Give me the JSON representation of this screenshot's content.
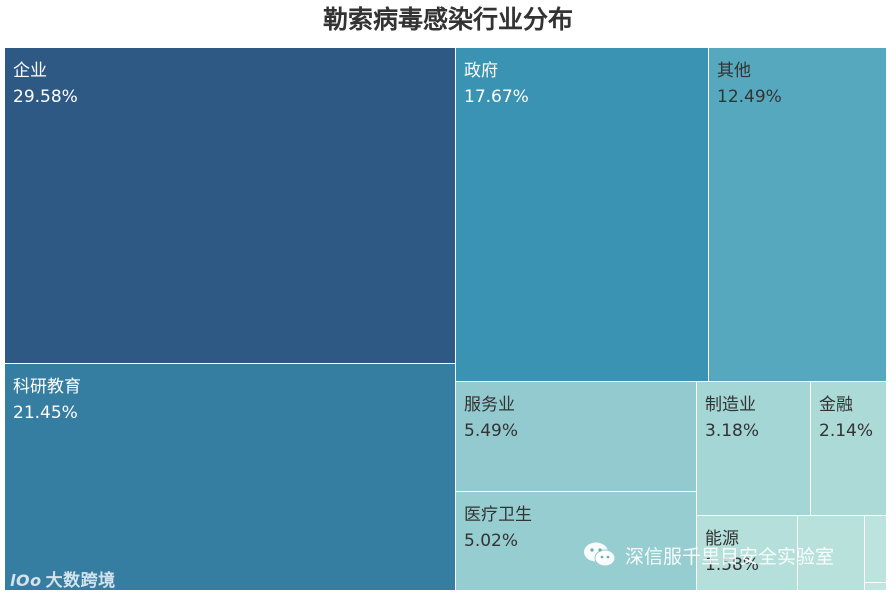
{
  "chart_data": {
    "type": "treemap",
    "title": "勒索病毒感染行业分布",
    "items": [
      {
        "name": "企业",
        "label": "29.58%",
        "value": 29.58,
        "color": "#2d5984",
        "text_color": "#ffffff"
      },
      {
        "name": "科研教育",
        "label": "21.45%",
        "value": 21.45,
        "color": "#367da2",
        "text_color": "#ffffff"
      },
      {
        "name": "政府",
        "label": "17.67%",
        "value": 17.67,
        "color": "#3a93b2",
        "text_color": "#ffffff"
      },
      {
        "name": "其他",
        "label": "12.49%",
        "value": 12.49,
        "color": "#56a8be",
        "text_color": "#333333"
      },
      {
        "name": "服务业",
        "label": "5.49%",
        "value": 5.49,
        "color": "#92cacf",
        "text_color": "#333333"
      },
      {
        "name": "医疗卫生",
        "label": "5.02%",
        "value": 5.02,
        "color": "#96cdd0",
        "text_color": "#333333"
      },
      {
        "name": "制造业",
        "label": "3.18%",
        "value": 3.18,
        "color": "#a4d6d5",
        "text_color": "#333333"
      },
      {
        "name": "金融",
        "label": "2.14%",
        "value": 2.14,
        "color": "#acdbd7",
        "text_color": "#333333"
      },
      {
        "name": "能源",
        "label": "1.58%",
        "value": 1.58,
        "color": "#b4dfda",
        "text_color": "#333333"
      },
      {
        "name": "",
        "label": "",
        "value": 0.8,
        "color": "#b9e1dc",
        "text_color": "#333333"
      },
      {
        "name": "",
        "label": "",
        "value": 0.3,
        "color": "#bde3de",
        "text_color": "#333333"
      },
      {
        "name": "",
        "label": "",
        "value": 0.1,
        "color": "#c1e5e0",
        "text_color": "#333333"
      }
    ]
  },
  "watermarks": {
    "left_logo": "lOo",
    "left_text": "大数跨境",
    "right_text": "深信服千里目安全实验室",
    "right_icon": "wechat-icon"
  }
}
